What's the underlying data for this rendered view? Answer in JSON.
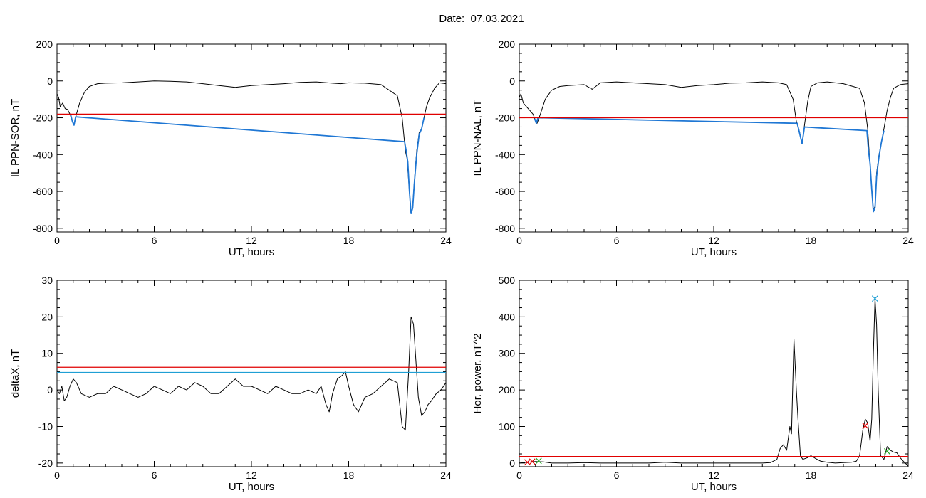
{
  "title": "Date:  07.03.2021",
  "chart_data": [
    {
      "type": "line",
      "ylabel": "IL PPN-SOR, nT",
      "xlabel": "UT, hours",
      "xlim": [
        0,
        24
      ],
      "ylim": [
        -820,
        200
      ],
      "xticks": [
        0,
        6,
        12,
        18,
        24
      ],
      "yticks": [
        -800,
        -600,
        -400,
        -200,
        0,
        200
      ],
      "thresholds": [
        {
          "value": -180,
          "color": "#e00000"
        }
      ],
      "series": [
        {
          "color": "#000000",
          "x": [
            0,
            0.1,
            0.2,
            0.35,
            0.5,
            0.65,
            0.8,
            0.95,
            1.05,
            1.2,
            1.4,
            1.7,
            2.0,
            2.5,
            3,
            4,
            5,
            6,
            7,
            8,
            9,
            10,
            11,
            12,
            13,
            14,
            15,
            16,
            17,
            17.5,
            18,
            19,
            20,
            21,
            21.3,
            21.5,
            21.6,
            21.75,
            21.85,
            21.95,
            22.05,
            22.2,
            22.35,
            22.5,
            22.65,
            22.8,
            23.0,
            23.3,
            23.6,
            24
          ],
          "y": [
            -70,
            -90,
            -140,
            -120,
            -150,
            -155,
            -180,
            -220,
            -240,
            -180,
            -120,
            -60,
            -30,
            -15,
            -12,
            -10,
            -5,
            0,
            -2,
            -5,
            -15,
            -25,
            -35,
            -25,
            -20,
            -15,
            -8,
            -5,
            -12,
            -15,
            -10,
            -12,
            -20,
            -80,
            -200,
            -380,
            -420,
            -600,
            -720,
            -680,
            -550,
            -380,
            -280,
            -260,
            -200,
            -140,
            -90,
            -40,
            -10,
            -15
          ]
        },
        {
          "color": "#1f77d4",
          "x": [
            0.85,
            0.95,
            1.05,
            1.15,
            21.45,
            21.55,
            21.65,
            21.75,
            21.85,
            21.95,
            22.05,
            22.2,
            22.35,
            22.5,
            22.65
          ],
          "y": [
            -185,
            -220,
            -240,
            -195,
            -330,
            -380,
            -440,
            -600,
            -720,
            -690,
            -560,
            -400,
            -290,
            -260,
            -200
          ]
        }
      ]
    },
    {
      "type": "line",
      "ylabel": "IL PPN-NAL, nT",
      "xlabel": "UT, hours",
      "xlim": [
        0,
        24
      ],
      "ylim": [
        -820,
        200
      ],
      "xticks": [
        0,
        6,
        12,
        18,
        24
      ],
      "yticks": [
        -800,
        -600,
        -400,
        -200,
        0,
        200
      ],
      "thresholds": [
        {
          "value": -200,
          "color": "#e00000"
        }
      ],
      "series": [
        {
          "color": "#000000",
          "x": [
            0,
            0.1,
            0.25,
            0.45,
            0.65,
            0.85,
            1.0,
            1.1,
            1.3,
            1.6,
            2.0,
            2.5,
            3,
            4,
            4.5,
            5,
            6,
            7,
            8,
            9,
            10,
            11,
            12,
            13,
            14,
            15,
            16,
            16.5,
            16.9,
            17.1,
            17.3,
            17.45,
            17.6,
            17.8,
            18.0,
            18.4,
            19,
            20,
            21,
            21.3,
            21.5,
            21.6,
            21.75,
            21.85,
            21.95,
            22.05,
            22.2,
            22.35,
            22.5,
            22.7,
            22.9,
            23.1,
            23.5,
            24
          ],
          "y": [
            -90,
            -70,
            -120,
            -140,
            -160,
            -180,
            -215,
            -230,
            -180,
            -100,
            -50,
            -30,
            -25,
            -20,
            -45,
            -10,
            -5,
            -10,
            -15,
            -20,
            -35,
            -25,
            -20,
            -12,
            -10,
            -5,
            -10,
            -20,
            -100,
            -220,
            -280,
            -340,
            -240,
            -110,
            -30,
            -10,
            -5,
            -15,
            -40,
            -120,
            -260,
            -400,
            -580,
            -700,
            -680,
            -500,
            -400,
            -330,
            -260,
            -160,
            -90,
            -40,
            -20,
            -15
          ]
        },
        {
          "color": "#1f77d4",
          "x": [
            0.95,
            1.05,
            1.15,
            17.15,
            17.3,
            17.45,
            17.6,
            21.45,
            21.55,
            21.65,
            21.75,
            21.85,
            21.95,
            22.05,
            22.2,
            22.35,
            22.5
          ],
          "y": [
            -205,
            -230,
            -200,
            -230,
            -285,
            -340,
            -250,
            -270,
            -380,
            -450,
            -590,
            -710,
            -690,
            -520,
            -410,
            -330,
            -270
          ]
        }
      ]
    },
    {
      "type": "line",
      "ylabel": "deltaX, nT",
      "xlabel": "UT, hours",
      "xlim": [
        0,
        24
      ],
      "ylim": [
        -21,
        30
      ],
      "xticks": [
        0,
        6,
        12,
        18,
        24
      ],
      "yticks": [
        -20,
        -10,
        0,
        10,
        20,
        30
      ],
      "thresholds": [
        {
          "value": 6.2,
          "color": "#e00000"
        },
        {
          "value": 4.8,
          "color": "#1f9fd4"
        }
      ],
      "series": [
        {
          "color": "#000000",
          "x": [
            0,
            0.15,
            0.3,
            0.45,
            0.6,
            0.8,
            1.0,
            1.2,
            1.5,
            2,
            2.5,
            3,
            3.5,
            4,
            4.5,
            5,
            5.5,
            6,
            6.5,
            7,
            7.5,
            8,
            8.5,
            9,
            9.5,
            10,
            10.5,
            11,
            11.5,
            12,
            12.5,
            13,
            13.5,
            14,
            14.5,
            15,
            15.5,
            16,
            16.3,
            16.6,
            16.8,
            17.0,
            17.3,
            17.6,
            17.8,
            18.0,
            18.3,
            18.6,
            19,
            19.5,
            20,
            20.5,
            21,
            21.3,
            21.5,
            21.7,
            21.85,
            22.0,
            22.15,
            22.3,
            22.5,
            22.7,
            22.9,
            23.1,
            23.4,
            23.7,
            24
          ],
          "y": [
            0,
            -1,
            1,
            -3,
            -2,
            1,
            3,
            2,
            -1,
            -2,
            -1,
            -1,
            1,
            0,
            -1,
            -2,
            -1,
            1,
            0,
            -1,
            1,
            0,
            2,
            1,
            -1,
            -1,
            1,
            3,
            1,
            1,
            0,
            -1,
            1,
            0,
            -1,
            -1,
            0,
            -1,
            1,
            -4,
            -6,
            -1,
            3,
            4,
            5,
            1,
            -4,
            -6,
            -2,
            -1,
            1,
            3,
            2,
            -10,
            -11,
            5,
            20,
            18,
            8,
            -2,
            -7,
            -6,
            -4,
            -3,
            -1,
            0,
            2
          ]
        }
      ]
    },
    {
      "type": "line",
      "ylabel": "Hor. power, nT^2",
      "xlabel": "UT, hours",
      "xlim": [
        0,
        24
      ],
      "ylim": [
        -10,
        500
      ],
      "xticks": [
        0,
        6,
        12,
        18,
        24
      ],
      "yticks": [
        0,
        100,
        200,
        300,
        400,
        500
      ],
      "thresholds": [
        {
          "value": 18,
          "color": "#e00000"
        }
      ],
      "series": [
        {
          "color": "#000000",
          "x": [
            0,
            0.5,
            1,
            1.5,
            2,
            3,
            4,
            5,
            6,
            7,
            8,
            9,
            10,
            11,
            12,
            13,
            14,
            15,
            15.5,
            15.9,
            16.1,
            16.3,
            16.5,
            16.7,
            16.8,
            16.95,
            17.1,
            17.2,
            17.35,
            17.5,
            17.8,
            18.0,
            18.3,
            18.6,
            19,
            19.5,
            20,
            20.5,
            20.8,
            21.0,
            21.2,
            21.35,
            21.5,
            21.65,
            21.75,
            21.85,
            21.95,
            22.05,
            22.15,
            22.3,
            22.5,
            22.7,
            22.9,
            23.1,
            23.3,
            23.5,
            23.7,
            24
          ],
          "y": [
            0,
            2,
            4,
            3,
            0,
            0,
            1,
            0,
            0,
            0,
            0,
            2,
            0,
            0,
            0,
            0,
            0,
            0,
            1,
            10,
            40,
            50,
            35,
            100,
            80,
            340,
            200,
            120,
            20,
            10,
            15,
            20,
            12,
            5,
            2,
            0,
            1,
            2,
            5,
            20,
            90,
            120,
            110,
            60,
            120,
            300,
            450,
            380,
            200,
            20,
            10,
            45,
            35,
            30,
            28,
            15,
            5,
            -8
          ]
        }
      ],
      "markers": [
        {
          "x": 0.5,
          "y": 2,
          "color": "#e00000",
          "shape": "x"
        },
        {
          "x": 0.8,
          "y": 4,
          "color": "#e00000",
          "shape": "x"
        },
        {
          "x": 1.2,
          "y": 6,
          "color": "#22aa22",
          "shape": "x"
        },
        {
          "x": 21.35,
          "y": 102,
          "color": "#e00000",
          "shape": "x"
        },
        {
          "x": 21.95,
          "y": 450,
          "color": "#1f9fd4",
          "shape": "x"
        },
        {
          "x": 22.7,
          "y": 32,
          "color": "#22aa22",
          "shape": "x"
        }
      ]
    }
  ]
}
